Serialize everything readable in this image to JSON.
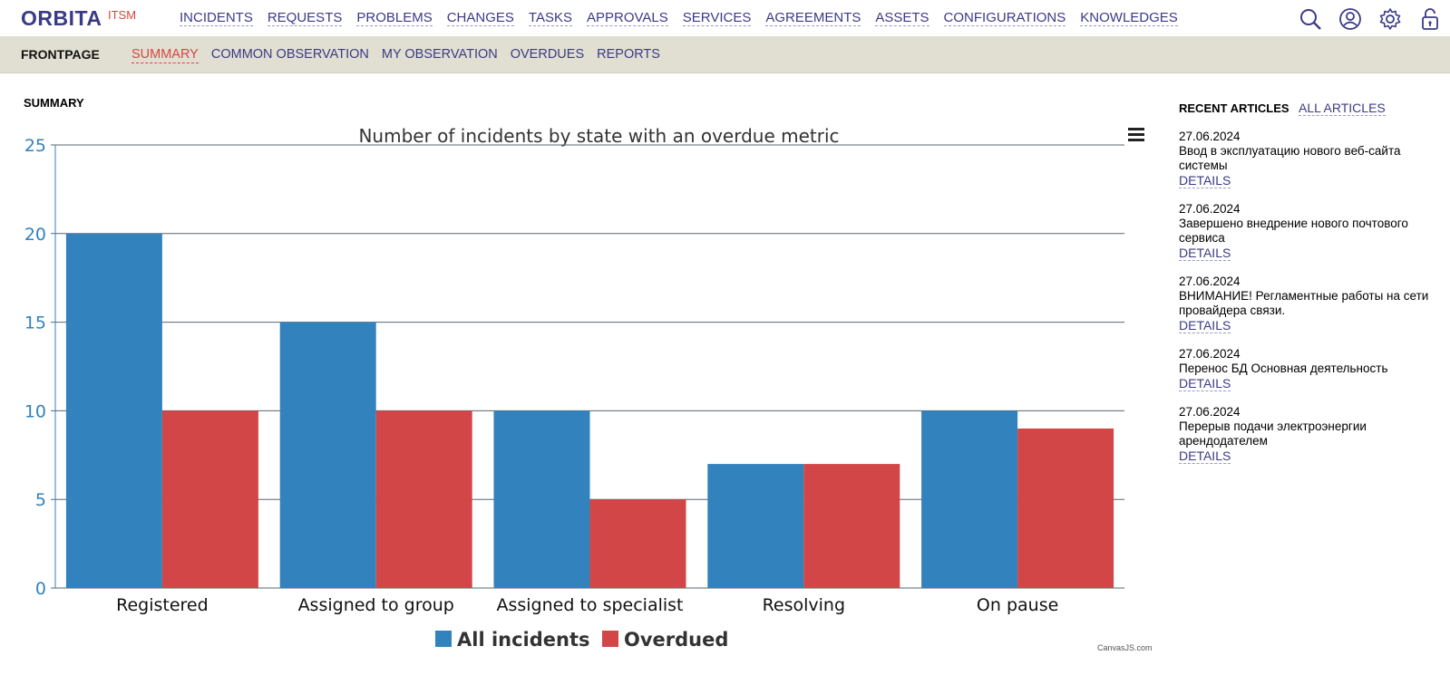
{
  "header": {
    "logo": "ORBITA",
    "logo_sub": "ITSM",
    "nav": [
      "INCIDENTS",
      "REQUESTS",
      "PROBLEMS",
      "CHANGES",
      "TASKS",
      "APPROVALS",
      "SERVICES",
      "AGREEMENTS",
      "ASSETS",
      "CONFIGURATIONS",
      "KNOWLEDGES"
    ],
    "icons": [
      "search-icon",
      "user-icon",
      "gear-icon",
      "lock-icon"
    ]
  },
  "subheader": {
    "title": "FRONTPAGE",
    "tabs": [
      "SUMMARY",
      "COMMON OBSERVATION",
      "MY OBSERVATION",
      "OVERDUES",
      "REPORTS"
    ],
    "active_tab": "SUMMARY"
  },
  "main": {
    "section_title": "SUMMARY",
    "credit": "CanvasJS.com"
  },
  "chart_data": {
    "type": "bar",
    "title": "Number of incidents by state with an overdue metric",
    "categories": [
      "Registered",
      "Assigned to group",
      "Assigned to specialist",
      "Resolving",
      "On pause"
    ],
    "series": [
      {
        "name": "All incidents",
        "values": [
          20,
          15,
          10,
          7,
          10
        ],
        "color": "#3282bd"
      },
      {
        "name": "Overdued",
        "values": [
          10,
          10,
          5,
          7,
          9
        ],
        "color": "#d34647"
      }
    ],
    "ylim": [
      0,
      25
    ],
    "yticks": [
      0,
      5,
      10,
      15,
      20,
      25
    ],
    "grid": true,
    "legend": "bottom-center"
  },
  "sidebar": {
    "title": "RECENT ARTICLES",
    "all_link": "ALL ARTICLES",
    "articles": [
      {
        "date": "27.06.2024",
        "title": "Ввод в эксплуатацию нового веб-сайта системы",
        "link": "DETAILS"
      },
      {
        "date": "27.06.2024",
        "title": "Завершено внедрение нового почтового сервиса",
        "link": "DETAILS"
      },
      {
        "date": "27.06.2024",
        "title": "ВНИМАНИЕ! Регламентные работы на сети провайдера связи.",
        "link": "DETAILS"
      },
      {
        "date": "27.06.2024",
        "title": "Перенос БД Основная деятельность",
        "link": "DETAILS"
      },
      {
        "date": "27.06.2024",
        "title": "Перерыв подачи электроэнергии арендодателем",
        "link": "DETAILS"
      }
    ]
  }
}
